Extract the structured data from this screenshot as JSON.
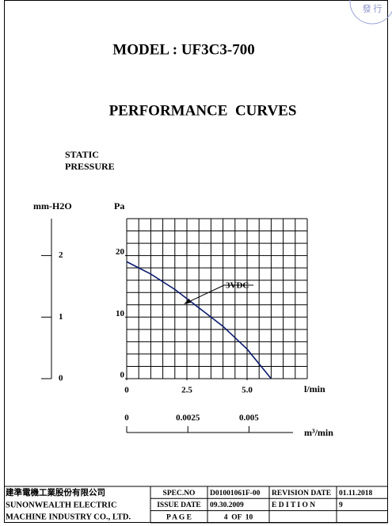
{
  "header": {
    "model": "MODEL : UF3C3-700",
    "section": "PERFORMANCE  CURVES",
    "stamp": "發 行"
  },
  "chart_data": {
    "type": "line",
    "y_label": [
      "STATIC",
      "PRESSURE"
    ],
    "y_unit": "Pa",
    "x_unit": "l/min",
    "x": [
      0,
      1,
      2,
      3,
      4,
      5,
      6
    ],
    "series": [
      {
        "name": "3VDC",
        "color": "#0a1a6e",
        "values": [
          19,
          17,
          14.5,
          11.5,
          8.5,
          4.8,
          0
        ]
      }
    ],
    "xlim": [
      0,
      7.5
    ],
    "xticks": [
      0,
      2.5,
      {
        "value": 5,
        "label": "5.0"
      }
    ],
    "ylim": [
      0,
      26
    ],
    "yticks": [
      0,
      10,
      20
    ],
    "grid": true,
    "secondary_y": {
      "label": "mm-H2O",
      "lim": [
        0,
        2.6
      ],
      "ticks": [
        0,
        1,
        2
      ]
    },
    "secondary_x": {
      "label": "m³/min",
      "lim": [
        0,
        0.0068
      ],
      "ticks": [
        0,
        0.0025,
        0.005
      ]
    }
  },
  "footer": {
    "rows": [
      [
        "建準電機工業股份有限公司",
        "SPEC.NO",
        "D01001061F-00",
        "REVISION DATE",
        "01.11.2018"
      ],
      [
        "SUNONWEALTH ELECTRIC",
        "ISSUE DATE",
        "09.30.2009",
        "E D I T I O N",
        "9"
      ],
      [
        "MACHINE INDUSTRY CO., LTD.",
        "P A G E",
        "4  OF  10"
      ]
    ]
  }
}
